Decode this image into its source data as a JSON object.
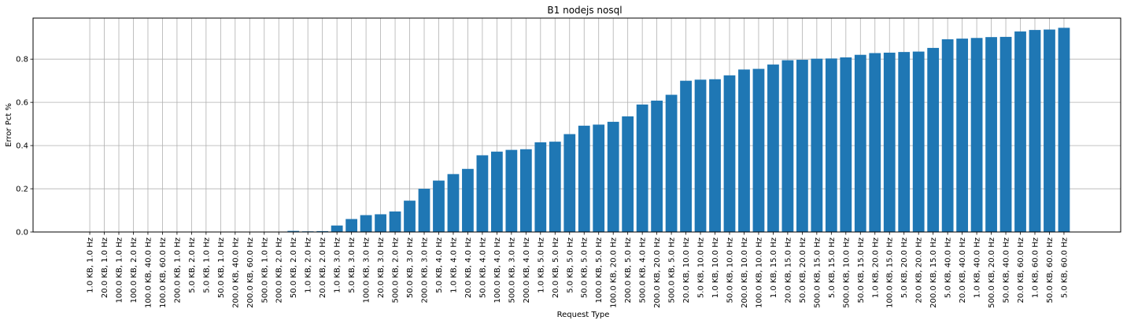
{
  "chart_data": {
    "type": "bar",
    "title": "B1 nodejs nosql",
    "xlabel": "Request Type",
    "ylabel": "Error Pct %",
    "ylim": [
      0,
      0.99
    ],
    "yticks": [
      "0.0",
      "0.2",
      "0.4",
      "0.6",
      "0.8"
    ],
    "grid": true,
    "bar_color": "#1f77b4",
    "categories": [
      "1.0 KB, 1.0 Hz",
      "20.0 KB, 1.0 Hz",
      "100.0 KB, 1.0 Hz",
      "100.0 KB, 2.0 Hz",
      "100.0 KB, 40.0 Hz",
      "100.0 KB, 60.0 Hz",
      "200.0 KB, 1.0 Hz",
      "5.0 KB, 2.0 Hz",
      "5.0 KB, 1.0 Hz",
      "50.0 KB, 1.0 Hz",
      "200.0 KB, 40.0 Hz",
      "200.0 KB, 60.0 Hz",
      "500.0 KB, 1.0 Hz",
      "200.0 KB, 2.0 Hz",
      "50.0 KB, 2.0 Hz",
      "1.0 KB, 2.0 Hz",
      "20.0 KB, 2.0 Hz",
      "1.0 KB, 3.0 Hz",
      "5.0 KB, 3.0 Hz",
      "100.0 KB, 3.0 Hz",
      "20.0 KB, 3.0 Hz",
      "500.0 KB, 2.0 Hz",
      "50.0 KB, 3.0 Hz",
      "200.0 KB, 3.0 Hz",
      "5.0 KB, 4.0 Hz",
      "1.0 KB, 4.0 Hz",
      "20.0 KB, 4.0 Hz",
      "50.0 KB, 4.0 Hz",
      "100.0 KB, 4.0 Hz",
      "500.0 KB, 3.0 Hz",
      "200.0 KB, 4.0 Hz",
      "1.0 KB, 5.0 Hz",
      "20.0 KB, 5.0 Hz",
      "5.0 KB, 5.0 Hz",
      "50.0 KB, 5.0 Hz",
      "100.0 KB, 5.0 Hz",
      "100.0 KB, 20.0 Hz",
      "200.0 KB, 5.0 Hz",
      "500.0 KB, 4.0 Hz",
      "200.0 KB, 20.0 Hz",
      "500.0 KB, 5.0 Hz",
      "20.0 KB, 10.0 Hz",
      "5.0 KB, 10.0 Hz",
      "1.0 KB, 10.0 Hz",
      "50.0 KB, 10.0 Hz",
      "200.0 KB, 10.0 Hz",
      "100.0 KB, 10.0 Hz",
      "1.0 KB, 15.0 Hz",
      "20.0 KB, 15.0 Hz",
      "50.0 KB, 20.0 Hz",
      "500.0 KB, 15.0 Hz",
      "5.0 KB, 15.0 Hz",
      "500.0 KB, 10.0 Hz",
      "50.0 KB, 15.0 Hz",
      "1.0 KB, 20.0 Hz",
      "100.0 KB, 15.0 Hz",
      "5.0 KB, 20.0 Hz",
      "20.0 KB, 20.0 Hz",
      "200.0 KB, 15.0 Hz",
      "5.0 KB, 40.0 Hz",
      "20.0 KB, 40.0 Hz",
      "1.0 KB, 40.0 Hz",
      "500.0 KB, 20.0 Hz",
      "50.0 KB, 40.0 Hz",
      "20.0 KB, 60.0 Hz",
      "1.0 KB, 60.0 Hz",
      "50.0 KB, 60.0 Hz",
      "5.0 KB, 60.0 Hz"
    ],
    "values": [
      0,
      0,
      0,
      0,
      0,
      0,
      0,
      0,
      0,
      0,
      0,
      0,
      0,
      0,
      0.005,
      0.003,
      0.004,
      0.03,
      0.06,
      0.078,
      0.082,
      0.095,
      0.145,
      0.2,
      0.238,
      0.268,
      0.292,
      0.355,
      0.372,
      0.38,
      0.383,
      0.415,
      0.418,
      0.453,
      0.492,
      0.497,
      0.51,
      0.535,
      0.59,
      0.608,
      0.635,
      0.7,
      0.705,
      0.707,
      0.725,
      0.752,
      0.755,
      0.775,
      0.795,
      0.797,
      0.802,
      0.803,
      0.808,
      0.82,
      0.828,
      0.83,
      0.833,
      0.835,
      0.852,
      0.892,
      0.895,
      0.898,
      0.902,
      0.903,
      0.928,
      0.935,
      0.937,
      0.945
    ]
  }
}
